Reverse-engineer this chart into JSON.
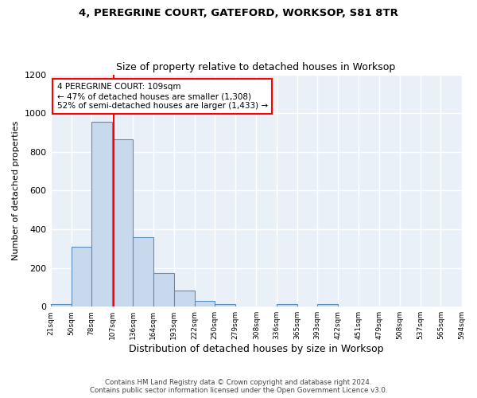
{
  "title1": "4, PEREGRINE COURT, GATEFORD, WORKSOP, S81 8TR",
  "title2": "Size of property relative to detached houses in Worksop",
  "xlabel": "Distribution of detached houses by size in Worksop",
  "ylabel": "Number of detached properties",
  "bin_edges": [
    21,
    50,
    78,
    107,
    136,
    164,
    193,
    222,
    250,
    279,
    308,
    336,
    365,
    393,
    422,
    451,
    479,
    508,
    537,
    565,
    594
  ],
  "bar_heights": [
    15,
    310,
    955,
    865,
    360,
    175,
    85,
    28,
    13,
    0,
    0,
    15,
    0,
    12,
    0,
    0,
    0,
    0,
    0,
    0
  ],
  "bar_color": "#c9d9ed",
  "bar_edge_color": "#5b8db8",
  "red_line_x": 109,
  "annotation_text": "4 PEREGRINE COURT: 109sqm\n← 47% of detached houses are smaller (1,308)\n52% of semi-detached houses are larger (1,433) →",
  "annotation_box_color": "white",
  "annotation_box_edge_color": "red",
  "ylim": [
    0,
    1200
  ],
  "yticks": [
    0,
    200,
    400,
    600,
    800,
    1000,
    1200
  ],
  "tick_labels": [
    "21sqm",
    "50sqm",
    "78sqm",
    "107sqm",
    "136sqm",
    "164sqm",
    "193sqm",
    "222sqm",
    "250sqm",
    "279sqm",
    "308sqm",
    "336sqm",
    "365sqm",
    "393sqm",
    "422sqm",
    "451sqm",
    "479sqm",
    "508sqm",
    "537sqm",
    "565sqm",
    "594sqm"
  ],
  "footer_text": "Contains HM Land Registry data © Crown copyright and database right 2024.\nContains public sector information licensed under the Open Government Licence v3.0.",
  "bg_color": "#eaf0f8",
  "grid_color": "white"
}
